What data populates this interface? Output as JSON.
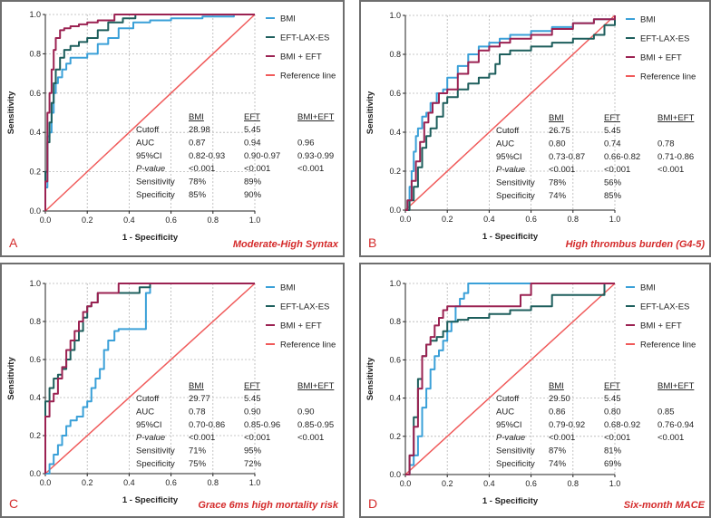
{
  "colors": {
    "bmi": "#3aa0d8",
    "eft": "#1d5e5c",
    "combined": "#9b2252",
    "reference": "#f05a5a"
  },
  "chart_data": [
    {
      "type": "line",
      "letter": "A",
      "caption": "Moderate-High Syntax",
      "xlabel": "1 - Specificity",
      "ylabel": "Sensitivity",
      "xlim": [
        0,
        1
      ],
      "ylim": [
        0,
        1
      ],
      "x_ticks": [
        "0.0",
        "0.2",
        "0.4",
        "0.6",
        "0.8",
        "1.0"
      ],
      "y_ticks": [
        "0.0",
        "0.2",
        "0.4",
        "0.6",
        "0.8",
        "1.0"
      ],
      "legend": [
        "BMI",
        "EFT-LAX-ES",
        "BMI + EFT",
        "Reference line"
      ],
      "series": [
        {
          "name": "BMI",
          "key": "bmi",
          "x": [
            0,
            0,
            0.01,
            0.01,
            0.02,
            0.03,
            0.04,
            0.05,
            0.06,
            0.08,
            0.1,
            0.12,
            0.15,
            0.2,
            0.25,
            0.3,
            0.35,
            0.42,
            0.5,
            0.6,
            0.75,
            0.9,
            1.0
          ],
          "y": [
            0,
            0.12,
            0.3,
            0.38,
            0.4,
            0.5,
            0.6,
            0.65,
            0.68,
            0.72,
            0.75,
            0.78,
            0.78,
            0.8,
            0.85,
            0.88,
            0.93,
            0.96,
            0.97,
            0.98,
            0.99,
            1.0,
            1.0
          ]
        },
        {
          "name": "EFT-LAX-ES",
          "key": "eft",
          "x": [
            0,
            0,
            0.01,
            0.02,
            0.03,
            0.04,
            0.05,
            0.07,
            0.09,
            0.12,
            0.16,
            0.2,
            0.25,
            0.3,
            0.37,
            0.43,
            0.6,
            0.8,
            1.0
          ],
          "y": [
            0,
            0.2,
            0.35,
            0.45,
            0.55,
            0.65,
            0.72,
            0.78,
            0.82,
            0.84,
            0.86,
            0.88,
            0.92,
            0.96,
            0.98,
            1.0,
            1.0,
            1.0,
            1.0
          ]
        },
        {
          "name": "BMI + EFT",
          "key": "combined",
          "x": [
            0,
            0,
            0.01,
            0.01,
            0.02,
            0.03,
            0.04,
            0.05,
            0.07,
            0.09,
            0.12,
            0.16,
            0.2,
            0.25,
            0.33,
            0.45,
            0.6,
            1.0
          ],
          "y": [
            0,
            0.15,
            0.35,
            0.5,
            0.6,
            0.72,
            0.82,
            0.88,
            0.92,
            0.93,
            0.94,
            0.95,
            0.96,
            0.97,
            1.0,
            1.0,
            1.0,
            1.0
          ]
        }
      ],
      "stats": {
        "headers": [
          "BMI",
          "EFT",
          "BMI+EFT"
        ],
        "rows": [
          {
            "label": "Cutoff",
            "values": [
              "28.98",
              "5.45",
              ""
            ]
          },
          {
            "label": "AUC",
            "values": [
              "0.87",
              "0.94",
              "0.96"
            ]
          },
          {
            "label": "95%CI",
            "values": [
              "0.82-0.93",
              "0.90-0.97",
              "0.93-0.99"
            ]
          },
          {
            "label": "P-value",
            "values": [
              "<0.001",
              "<0.001",
              "<0.001"
            ]
          },
          {
            "label": "Sensitivity",
            "values": [
              "78%",
              "89%",
              ""
            ]
          },
          {
            "label": "Specificity",
            "values": [
              "85%",
              "90%",
              ""
            ]
          }
        ]
      }
    },
    {
      "type": "line",
      "letter": "B",
      "caption": "High thrombus burden (G4-5)",
      "xlabel": "1 - Specificity",
      "ylabel": "Sensitivity",
      "xlim": [
        0,
        1
      ],
      "ylim": [
        0,
        1
      ],
      "x_ticks": [
        "0.0",
        "0.2",
        "0.4",
        "0.6",
        "0.8",
        "1.0"
      ],
      "y_ticks": [
        "0.0",
        "0.2",
        "0.4",
        "0.6",
        "0.8",
        "1.0"
      ],
      "legend": [
        "BMI",
        "EFT-LAX-ES",
        "BMI + EFT",
        "Reference line"
      ],
      "series": [
        {
          "name": "BMI",
          "key": "bmi",
          "x": [
            0,
            0.01,
            0.02,
            0.03,
            0.04,
            0.05,
            0.06,
            0.08,
            0.1,
            0.12,
            0.15,
            0.18,
            0.2,
            0.25,
            0.3,
            0.35,
            0.4,
            0.45,
            0.5,
            0.6,
            0.7,
            0.8,
            0.9,
            1.0
          ],
          "y": [
            0,
            0.05,
            0.12,
            0.2,
            0.3,
            0.38,
            0.42,
            0.48,
            0.5,
            0.55,
            0.6,
            0.62,
            0.68,
            0.74,
            0.8,
            0.84,
            0.86,
            0.88,
            0.9,
            0.92,
            0.94,
            0.96,
            0.98,
            1.0
          ]
        },
        {
          "name": "EFT-LAX-ES",
          "key": "eft",
          "x": [
            0,
            0.02,
            0.04,
            0.06,
            0.08,
            0.1,
            0.12,
            0.15,
            0.18,
            0.2,
            0.25,
            0.3,
            0.35,
            0.4,
            0.43,
            0.45,
            0.5,
            0.6,
            0.7,
            0.8,
            0.9,
            0.95,
            1.0
          ],
          "y": [
            0,
            0.05,
            0.12,
            0.22,
            0.32,
            0.38,
            0.42,
            0.48,
            0.55,
            0.58,
            0.62,
            0.65,
            0.68,
            0.7,
            0.75,
            0.8,
            0.82,
            0.84,
            0.86,
            0.88,
            0.9,
            0.95,
            1.0
          ]
        },
        {
          "name": "BMI + EFT",
          "key": "combined",
          "x": [
            0,
            0.01,
            0.03,
            0.05,
            0.07,
            0.09,
            0.11,
            0.13,
            0.16,
            0.2,
            0.25,
            0.3,
            0.35,
            0.4,
            0.45,
            0.5,
            0.6,
            0.7,
            0.8,
            0.9,
            1.0
          ],
          "y": [
            0,
            0.05,
            0.15,
            0.25,
            0.35,
            0.45,
            0.5,
            0.55,
            0.6,
            0.62,
            0.7,
            0.76,
            0.82,
            0.84,
            0.86,
            0.88,
            0.9,
            0.93,
            0.96,
            0.98,
            1.0
          ]
        }
      ],
      "stats": {
        "headers": [
          "BMI",
          "EFT",
          "BMI+EFT"
        ],
        "rows": [
          {
            "label": "Cutoff",
            "values": [
              "26.75",
              "5.45",
              ""
            ]
          },
          {
            "label": "AUC",
            "values": [
              "0.80",
              "0.74",
              "0.78"
            ]
          },
          {
            "label": "95%CI",
            "values": [
              "0.73-0.87",
              "0.66-0.82",
              "0.71-0.86"
            ]
          },
          {
            "label": "P-value",
            "values": [
              "<0.001",
              "<0.001",
              "<0.001"
            ]
          },
          {
            "label": "Sensitivity",
            "values": [
              "78%",
              "56%",
              ""
            ]
          },
          {
            "label": "Specificity",
            "values": [
              "74%",
              "85%",
              ""
            ]
          }
        ]
      }
    },
    {
      "type": "line",
      "letter": "C",
      "caption": "Grace 6ms high mortality risk",
      "xlabel": "1 - Specificity",
      "ylabel": "Sensitivity",
      "xlim": [
        0,
        1
      ],
      "ylim": [
        0,
        1
      ],
      "x_ticks": [
        "0.0",
        "0.2",
        "0.4",
        "0.6",
        "0.8",
        "1.0"
      ],
      "y_ticks": [
        "0.0",
        "0.2",
        "0.4",
        "0.6",
        "0.8",
        "1.0"
      ],
      "legend": [
        "BMI",
        "EFT-LAX-ES",
        "BMI + EFT",
        "Reference line"
      ],
      "series": [
        {
          "name": "BMI",
          "key": "bmi",
          "x": [
            0,
            0.02,
            0.04,
            0.06,
            0.08,
            0.1,
            0.12,
            0.15,
            0.18,
            0.2,
            0.22,
            0.24,
            0.26,
            0.28,
            0.3,
            0.33,
            0.35,
            0.4,
            0.45,
            0.48,
            0.5,
            0.6,
            0.8,
            1.0
          ],
          "y": [
            0,
            0.05,
            0.1,
            0.15,
            0.2,
            0.25,
            0.28,
            0.3,
            0.35,
            0.38,
            0.45,
            0.5,
            0.55,
            0.65,
            0.7,
            0.75,
            0.76,
            0.76,
            0.76,
            0.95,
            1.0,
            1.0,
            1.0,
            1.0
          ]
        },
        {
          "name": "EFT-LAX-ES",
          "key": "eft",
          "x": [
            0,
            0,
            0.02,
            0.04,
            0.06,
            0.08,
            0.1,
            0.12,
            0.14,
            0.16,
            0.18,
            0.2,
            0.22,
            0.25,
            0.3,
            0.35,
            0.4,
            0.45,
            0.5,
            0.6,
            0.8,
            1.0
          ],
          "y": [
            0,
            0.38,
            0.45,
            0.5,
            0.52,
            0.55,
            0.6,
            0.65,
            0.7,
            0.75,
            0.82,
            0.88,
            0.9,
            0.95,
            0.95,
            0.95,
            0.95,
            0.98,
            1.0,
            1.0,
            1.0,
            1.0
          ]
        },
        {
          "name": "BMI + EFT",
          "key": "combined",
          "x": [
            0,
            0,
            0.02,
            0.04,
            0.06,
            0.08,
            0.1,
            0.12,
            0.14,
            0.16,
            0.18,
            0.2,
            0.22,
            0.25,
            0.3,
            0.35,
            0.4,
            0.5,
            0.6,
            0.8,
            1.0
          ],
          "y": [
            0,
            0.3,
            0.38,
            0.42,
            0.5,
            0.56,
            0.65,
            0.7,
            0.75,
            0.8,
            0.85,
            0.88,
            0.9,
            0.95,
            0.95,
            1.0,
            1.0,
            1.0,
            1.0,
            1.0,
            1.0
          ]
        }
      ],
      "stats": {
        "headers": [
          "BMI",
          "EFT",
          "BMI+EFT"
        ],
        "rows": [
          {
            "label": "Cutoff",
            "values": [
              "29.77",
              "5.45",
              ""
            ]
          },
          {
            "label": "AUC",
            "values": [
              "0.78",
              "0.90",
              "0.90"
            ]
          },
          {
            "label": "95%CI",
            "values": [
              "0.70-0.86",
              "0.85-0.96",
              "0.85-0.95"
            ]
          },
          {
            "label": "P-value",
            "values": [
              "<0.001",
              "<0.001",
              "<0.001"
            ]
          },
          {
            "label": "Sensitivity",
            "values": [
              "71%",
              "95%",
              ""
            ]
          },
          {
            "label": "Specificity",
            "values": [
              "75%",
              "72%",
              ""
            ]
          }
        ]
      }
    },
    {
      "type": "line",
      "letter": "D",
      "caption": "Six-month MACE",
      "xlabel": "1 - Specificity",
      "ylabel": "Sensitivity",
      "xlim": [
        0,
        1
      ],
      "ylim": [
        0,
        1
      ],
      "x_ticks": [
        "0.0",
        "0.2",
        "0.4",
        "0.6",
        "0.8",
        "1.0"
      ],
      "y_ticks": [
        "0.0",
        "0.2",
        "0.4",
        "0.6",
        "0.8",
        "1.0"
      ],
      "legend": [
        "BMI",
        "EFT-LAX-ES",
        "BMI + EFT",
        "Reference line"
      ],
      "series": [
        {
          "name": "BMI",
          "key": "bmi",
          "x": [
            0,
            0.02,
            0.04,
            0.06,
            0.08,
            0.1,
            0.12,
            0.14,
            0.16,
            0.18,
            0.2,
            0.22,
            0.24,
            0.26,
            0.28,
            0.3,
            0.4,
            0.5,
            0.6,
            0.8,
            1.0
          ],
          "y": [
            0,
            0.05,
            0.1,
            0.2,
            0.35,
            0.45,
            0.55,
            0.62,
            0.65,
            0.7,
            0.75,
            0.8,
            0.88,
            0.92,
            0.95,
            1.0,
            1.0,
            1.0,
            1.0,
            1.0,
            1.0
          ]
        },
        {
          "name": "EFT-LAX-ES",
          "key": "eft",
          "x": [
            0,
            0.02,
            0.04,
            0.06,
            0.08,
            0.1,
            0.12,
            0.15,
            0.18,
            0.2,
            0.25,
            0.3,
            0.4,
            0.5,
            0.6,
            0.7,
            0.8,
            0.9,
            0.95,
            1.0
          ],
          "y": [
            0,
            0.1,
            0.3,
            0.5,
            0.62,
            0.68,
            0.7,
            0.72,
            0.75,
            0.8,
            0.81,
            0.82,
            0.84,
            0.86,
            0.88,
            0.94,
            0.94,
            0.94,
            1.0,
            1.0
          ]
        },
        {
          "name": "BMI + EFT",
          "key": "combined",
          "x": [
            0,
            0.02,
            0.04,
            0.06,
            0.08,
            0.1,
            0.12,
            0.14,
            0.16,
            0.18,
            0.2,
            0.25,
            0.3,
            0.4,
            0.5,
            0.55,
            0.6,
            0.8,
            1.0
          ],
          "y": [
            0,
            0.1,
            0.25,
            0.45,
            0.62,
            0.68,
            0.72,
            0.78,
            0.82,
            0.86,
            0.88,
            0.88,
            0.88,
            0.88,
            0.88,
            0.94,
            1.0,
            1.0,
            1.0
          ]
        }
      ],
      "stats": {
        "headers": [
          "BMI",
          "EFT",
          "BMI+EFT"
        ],
        "rows": [
          {
            "label": "Cutoff",
            "values": [
              "29.50",
              "5.45",
              ""
            ]
          },
          {
            "label": "AUC",
            "values": [
              "0.86",
              "0.80",
              "0.85"
            ]
          },
          {
            "label": "95%CI",
            "values": [
              "0.79-0.92",
              "0.68-0.92",
              "0.76-0.94"
            ]
          },
          {
            "label": "P-value",
            "values": [
              "<0.001",
              "<0.001",
              "<0.001"
            ]
          },
          {
            "label": "Sensitivity",
            "values": [
              "87%",
              "81%",
              ""
            ]
          },
          {
            "label": "Specificity",
            "values": [
              "74%",
              "69%",
              ""
            ]
          }
        ]
      }
    }
  ]
}
